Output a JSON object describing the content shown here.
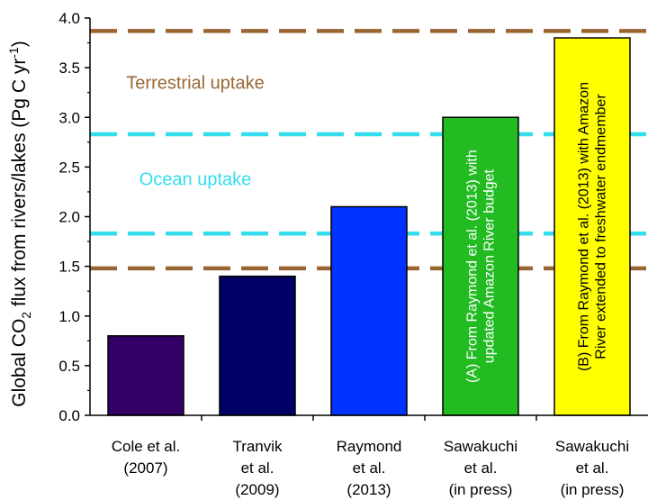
{
  "chart_data": {
    "type": "bar",
    "categories": [
      [
        "Cole et al.",
        "(2007)"
      ],
      [
        "Tranvik",
        "et al.",
        "(2009)"
      ],
      [
        "Raymond",
        "et al.",
        "(2013)"
      ],
      [
        "Sawakuchi",
        "et al.",
        "(in press)"
      ],
      [
        "Sawakuchi",
        "et al.",
        "(in press)"
      ]
    ],
    "values": [
      0.8,
      1.4,
      2.1,
      3.0,
      3.8
    ],
    "bar_colors": [
      "#330066",
      "#000066",
      "#0033ff",
      "#22bb22",
      "#ffff00"
    ],
    "bar_annotations": [
      null,
      null,
      null,
      {
        "lines": [
          "(A) From Raymond et al. (2013) with",
          "updated Amazon River budget"
        ],
        "color": "#ffffff"
      },
      {
        "lines": [
          "(B) From Raymond et al. (2013) with Amazon",
          "River extended to freshwater endmember"
        ],
        "color": "#000000"
      }
    ],
    "ylabel": {
      "before": "Global CO",
      "sub": "2",
      "middle": " flux from rivers/lakes (Pg C yr",
      "sup": "-1",
      "after": ")"
    },
    "xlabel": "",
    "ylim": [
      0,
      4.0
    ],
    "yticks": [
      "0.0",
      "0.5",
      "1.0",
      "1.5",
      "2.0",
      "2.5",
      "3.0",
      "3.5",
      "4.0"
    ],
    "reference_lines": [
      {
        "name": "terrestrial-lower",
        "value": 1.48,
        "color": "#996633"
      },
      {
        "name": "ocean-lower",
        "value": 1.83,
        "color": "#33ddee"
      },
      {
        "name": "ocean-upper",
        "value": 2.83,
        "color": "#33ddee"
      },
      {
        "name": "terrestrial-upper",
        "value": 3.87,
        "color": "#996633"
      }
    ],
    "annotations": [
      {
        "name": "terrestrial-uptake-label",
        "text": "Terrestrial uptake",
        "value": 3.35,
        "color": "#996633"
      },
      {
        "name": "ocean-uptake-label",
        "text": "Ocean uptake",
        "value": 2.38,
        "color": "#33ddee"
      }
    ],
    "grid": false,
    "legend": "none"
  }
}
